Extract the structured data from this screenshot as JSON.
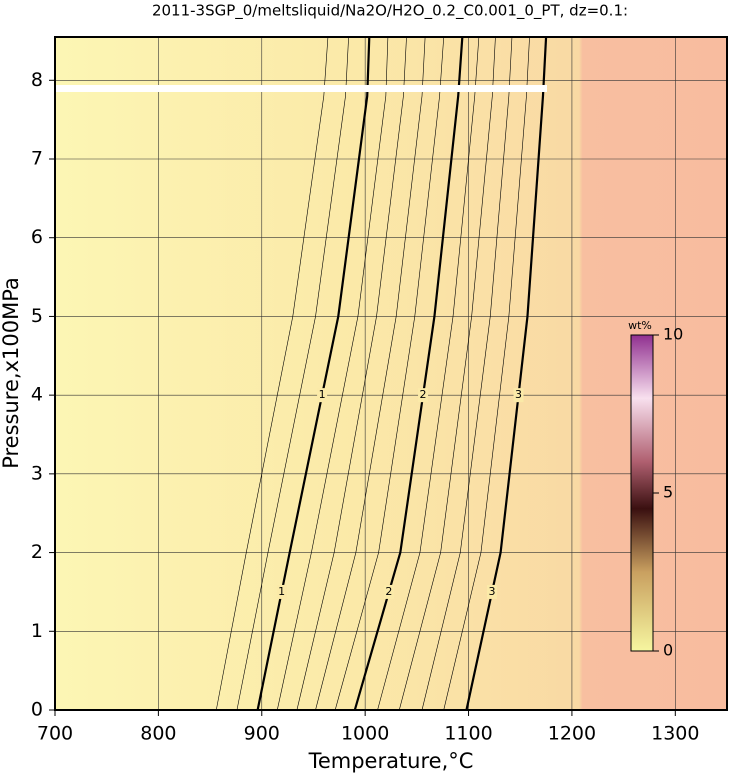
{
  "chart_data": {
    "type": "contour",
    "title": "2011-3SGP_0/meltsliquid/Na2O/H2O_0.2_C0.001_0_PT, dz=0.1:",
    "x_label": "Temperature,°C",
    "y_label": "Pressure,x100MPa",
    "xlim": [
      700,
      1350
    ],
    "xticks": [
      700,
      800,
      900,
      1000,
      1100,
      1200,
      1300
    ],
    "ylim": [
      0,
      8.55
    ],
    "yticks": [
      0,
      1,
      2,
      3,
      4,
      5,
      6,
      7,
      8
    ],
    "grid": true,
    "pressures": [
      0,
      2,
      5,
      7.8,
      8.55
    ],
    "contours": [
      {
        "level": 0.6,
        "temperatures": [
          856,
          885,
          930,
          960,
          964
        ]
      },
      {
        "level": 0.8,
        "temperatures": [
          876,
          906,
          952,
          981,
          984
        ]
      },
      {
        "level": 1,
        "temperatures": [
          896,
          927,
          974,
          1002,
          1004
        ]
      },
      {
        "level": 1.2,
        "temperatures": [
          915,
          948,
          993,
          1020,
          1022
        ]
      },
      {
        "level": 1.4,
        "temperatures": [
          934,
          970,
          1011,
          1037,
          1040
        ]
      },
      {
        "level": 1.6,
        "temperatures": [
          952,
          991,
          1030,
          1055,
          1058
        ]
      },
      {
        "level": 1.8,
        "temperatures": [
          971,
          1013,
          1048,
          1072,
          1076
        ]
      },
      {
        "level": 2,
        "temperatures": [
          990,
          1034,
          1067,
          1090,
          1094
        ]
      },
      {
        "level": 2.2,
        "temperatures": [
          1012,
          1053,
          1085,
          1106,
          1110
        ]
      },
      {
        "level": 2.4,
        "temperatures": [
          1033,
          1073,
          1103,
          1123,
          1126
        ]
      },
      {
        "level": 2.6,
        "temperatures": [
          1055,
          1092,
          1121,
          1139,
          1142
        ]
      },
      {
        "level": 2.8,
        "temperatures": [
          1076,
          1112,
          1139,
          1156,
          1159
        ]
      },
      {
        "level": 3,
        "temperatures": [
          1098,
          1131,
          1157,
          1172,
          1175
        ]
      }
    ],
    "colorbar": {
      "label": "wt%",
      "lim": [
        0,
        10
      ],
      "ticks": [
        0,
        5,
        10
      ]
    }
  }
}
